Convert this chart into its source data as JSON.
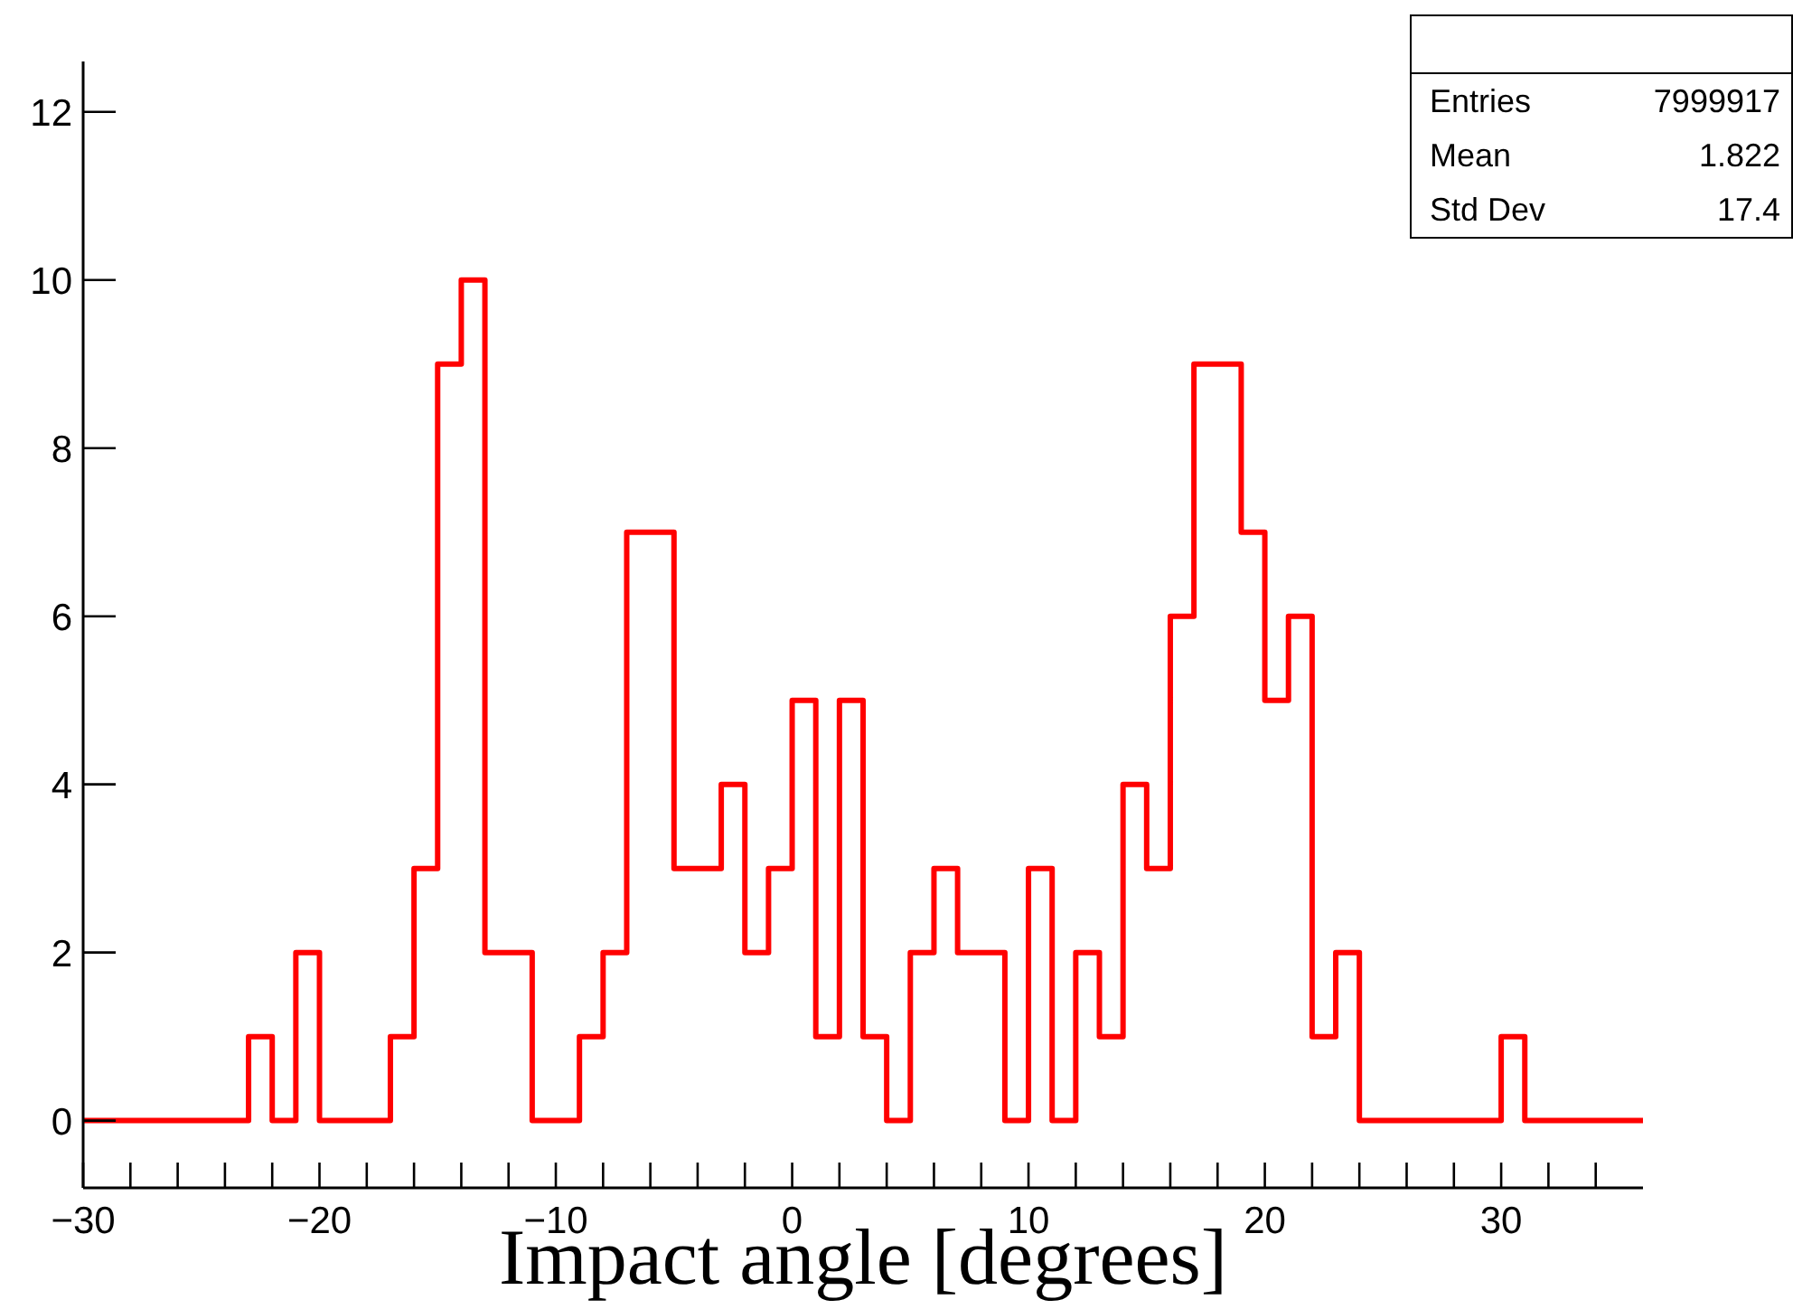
{
  "chart_data": {
    "type": "histogram",
    "xlabel": "Impact angle [degrees]",
    "bins": [
      -30,
      -29,
      -28,
      -27,
      -26,
      -25,
      -24,
      -23,
      -22,
      -21,
      -20,
      -19,
      -18,
      -17,
      -16,
      -15,
      -14,
      -13,
      -12,
      -11,
      -10,
      -9,
      -8,
      -7,
      -6,
      -5,
      -4,
      -3,
      -2,
      -1,
      0,
      1,
      2,
      3,
      4,
      5,
      6,
      7,
      8,
      9,
      10,
      11,
      12,
      13,
      14,
      15,
      16,
      17,
      18,
      19,
      20,
      21,
      22,
      23,
      24,
      25,
      26,
      27,
      28,
      29,
      30,
      31,
      32,
      33,
      34,
      35,
      36
    ],
    "values": [
      0,
      0,
      0,
      0,
      0,
      0,
      0,
      1,
      0,
      2,
      0,
      0,
      0,
      1,
      3,
      9,
      10,
      2,
      2,
      0,
      0,
      1,
      2,
      7,
      7,
      3,
      3,
      4,
      2,
      3,
      5,
      1,
      5,
      1,
      0,
      2,
      3,
      2,
      2,
      0,
      3,
      0,
      2,
      1,
      4,
      3,
      6,
      9,
      9,
      7,
      5,
      6,
      1,
      2,
      0,
      0,
      0,
      0,
      0,
      0,
      1,
      0,
      0,
      0,
      0,
      0
    ],
    "color": "#ff0000",
    "xlim": [
      -30,
      36
    ],
    "xticks": [
      -30,
      {
        "value": -28,
        "label": null
      },
      {
        "value": -26,
        "label": null
      },
      {
        "value": -24,
        "label": null
      },
      {
        "value": -22,
        "label": null
      },
      -20,
      {
        "value": -18,
        "label": null
      },
      {
        "value": -16,
        "label": null
      },
      {
        "value": -14,
        "label": null
      },
      {
        "value": -12,
        "label": null
      },
      -10,
      {
        "value": -8,
        "label": null
      },
      {
        "value": -6,
        "label": null
      },
      {
        "value": -4,
        "label": null
      },
      {
        "value": -2,
        "label": null
      },
      0,
      {
        "value": 2,
        "label": null
      },
      {
        "value": 4,
        "label": null
      },
      {
        "value": 6,
        "label": null
      },
      {
        "value": 8,
        "label": null
      },
      10,
      {
        "value": 12,
        "label": null
      },
      {
        "value": 14,
        "label": null
      },
      {
        "value": 16,
        "label": null
      },
      {
        "value": 18,
        "label": null
      },
      20,
      {
        "value": 22,
        "label": null
      },
      {
        "value": 24,
        "label": null
      },
      {
        "value": 26,
        "label": null
      },
      {
        "value": 28,
        "label": null
      },
      30,
      {
        "value": 32,
        "label": null
      },
      {
        "value": 34,
        "label": null
      }
    ],
    "ylim": [
      -0.8,
      12.6
    ],
    "yticks": [
      0,
      2,
      4,
      6,
      8,
      10,
      12
    ],
    "grid": false,
    "annotations": [
      "Entries",
      "7999917",
      "Mean",
      "1.822",
      "Std Dev",
      "17.4"
    ]
  }
}
